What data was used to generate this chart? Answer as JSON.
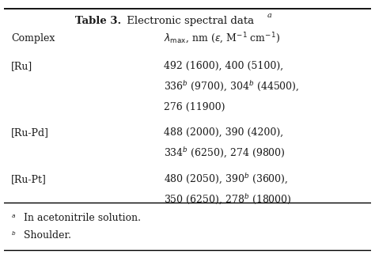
{
  "title_bold": "Table 3.",
  "title_regular": " Electronic spectral data",
  "title_superscript": "a",
  "col1_header": "Complex",
  "col2_header_math": "$\\lambda_{\\mathrm{max}}$, nm ($\\varepsilon$, M$^{-1}$ cm$^{-1}$)",
  "rows": [
    {
      "complex": "[Ru]",
      "data_lines": [
        "492 (1600), 400 (5100),",
        "336$^{b}$ (9700), 304$^{b}$ (44500),",
        "276 (11900)"
      ]
    },
    {
      "complex": "[Ru-Pd]",
      "data_lines": [
        "488 (2000), 390 (4200),",
        "334$^{b}$ (6250), 274 (9800)"
      ]
    },
    {
      "complex": "[Ru-Pt]",
      "data_lines": [
        "480 (2050), 390$^{b}$ (3600),",
        "350 (6250), 278$^{b}$ (18000)"
      ]
    }
  ],
  "footnote_a": "In acetonitrile solution.",
  "footnote_b": "Shoulder.",
  "bg_color": "#ffffff",
  "text_color": "#1a1a1a",
  "font_size": 9.0,
  "title_font_size": 9.5
}
